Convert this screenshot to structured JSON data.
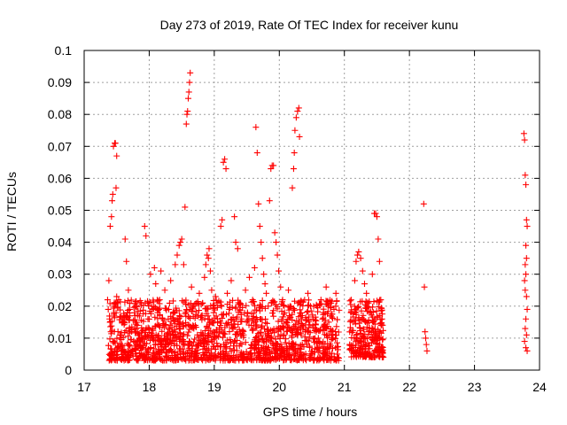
{
  "chart_data": {
    "type": "scatter",
    "title": "Day 273 of 2019, Rate Of TEC Index for receiver kunu",
    "xlabel": "GPS time / hours",
    "ylabel": "ROTI / TECUs",
    "xlim": [
      17,
      24
    ],
    "ylim": [
      0,
      0.1
    ],
    "x_ticks": [
      17,
      18,
      19,
      20,
      21,
      22,
      23,
      24
    ],
    "x_tick_labels": [
      "17",
      "18",
      "19",
      "20",
      "21",
      "22",
      "23",
      "24"
    ],
    "y_ticks": [
      0,
      0.01,
      0.02,
      0.03,
      0.04,
      0.05,
      0.06,
      0.07,
      0.08,
      0.09,
      0.1
    ],
    "y_tick_labels": [
      "0",
      "0.01",
      "0.02",
      "0.03",
      "0.04",
      "0.05",
      "0.06",
      "0.07",
      "0.08",
      "0.09",
      "0.1"
    ],
    "grid": true,
    "marker": "+",
    "color": "#ff0000",
    "series": [
      {
        "points": [
          [
            17.38,
            0.028
          ],
          [
            17.4,
            0.045
          ],
          [
            17.42,
            0.048
          ],
          [
            17.43,
            0.053
          ],
          [
            17.44,
            0.055
          ],
          [
            17.45,
            0.07
          ],
          [
            17.47,
            0.071
          ],
          [
            17.48,
            0.071
          ],
          [
            17.49,
            0.057
          ],
          [
            17.5,
            0.067
          ],
          [
            17.36,
            0.022
          ],
          [
            17.37,
            0.019
          ],
          [
            17.39,
            0.016
          ],
          [
            17.41,
            0.012
          ],
          [
            17.44,
            0.009
          ],
          [
            17.46,
            0.018
          ],
          [
            17.5,
            0.023
          ],
          [
            17.53,
            0.022
          ],
          [
            17.55,
            0.011
          ],
          [
            17.58,
            0.008
          ],
          [
            17.6,
            0.015
          ],
          [
            17.63,
            0.041
          ],
          [
            17.65,
            0.034
          ],
          [
            17.68,
            0.025
          ],
          [
            17.7,
            0.019
          ],
          [
            17.73,
            0.012
          ],
          [
            17.76,
            0.009
          ],
          [
            17.78,
            0.017
          ],
          [
            17.82,
            0.014
          ],
          [
            17.85,
            0.01
          ],
          [
            17.88,
            0.021
          ],
          [
            17.9,
            0.007
          ],
          [
            17.93,
            0.045
          ],
          [
            17.95,
            0.042
          ],
          [
            17.98,
            0.016
          ],
          [
            18.02,
            0.03
          ],
          [
            18.05,
            0.013
          ],
          [
            18.08,
            0.032
          ],
          [
            18.1,
            0.027
          ],
          [
            18.13,
            0.018
          ],
          [
            18.16,
            0.022
          ],
          [
            18.18,
            0.031
          ],
          [
            18.21,
            0.014
          ],
          [
            18.24,
            0.025
          ],
          [
            18.27,
            0.01
          ],
          [
            18.3,
            0.019
          ],
          [
            18.33,
            0.028
          ],
          [
            18.36,
            0.012
          ],
          [
            18.4,
            0.033
          ],
          [
            18.43,
            0.036
          ],
          [
            18.46,
            0.039
          ],
          [
            18.48,
            0.04
          ],
          [
            18.5,
            0.041
          ],
          [
            18.53,
            0.033
          ],
          [
            18.55,
            0.051
          ],
          [
            18.57,
            0.077
          ],
          [
            18.58,
            0.08
          ],
          [
            18.59,
            0.081
          ],
          [
            18.6,
            0.085
          ],
          [
            18.61,
            0.087
          ],
          [
            18.62,
            0.09
          ],
          [
            18.63,
            0.093
          ],
          [
            18.65,
            0.026
          ],
          [
            18.68,
            0.02
          ],
          [
            18.71,
            0.014
          ],
          [
            18.74,
            0.011
          ],
          [
            18.77,
            0.024
          ],
          [
            18.8,
            0.017
          ],
          [
            18.82,
            0.021
          ],
          [
            18.85,
            0.029
          ],
          [
            18.87,
            0.033
          ],
          [
            18.89,
            0.036
          ],
          [
            18.91,
            0.035
          ],
          [
            18.92,
            0.038
          ],
          [
            18.94,
            0.031
          ],
          [
            18.96,
            0.025
          ],
          [
            18.99,
            0.018
          ],
          [
            19.02,
            0.023
          ],
          [
            19.05,
            0.015
          ],
          [
            19.08,
            0.012
          ],
          [
            19.1,
            0.045
          ],
          [
            19.12,
            0.047
          ],
          [
            19.14,
            0.065
          ],
          [
            19.16,
            0.066
          ],
          [
            19.18,
            0.063
          ],
          [
            19.2,
            0.024
          ],
          [
            19.23,
            0.019
          ],
          [
            19.26,
            0.028
          ],
          [
            19.29,
            0.013
          ],
          [
            19.31,
            0.048
          ],
          [
            19.33,
            0.04
          ],
          [
            19.36,
            0.038
          ],
          [
            19.39,
            0.021
          ],
          [
            19.42,
            0.016
          ],
          [
            19.45,
            0.011
          ],
          [
            19.48,
            0.025
          ],
          [
            19.51,
            0.018
          ],
          [
            19.54,
            0.029
          ],
          [
            19.57,
            0.014
          ],
          [
            19.59,
            0.022
          ],
          [
            19.62,
            0.032
          ],
          [
            19.64,
            0.076
          ],
          [
            19.66,
            0.068
          ],
          [
            19.68,
            0.052
          ],
          [
            19.7,
            0.045
          ],
          [
            19.72,
            0.04
          ],
          [
            19.74,
            0.035
          ],
          [
            19.76,
            0.03
          ],
          [
            19.78,
            0.027
          ],
          [
            19.8,
            0.024
          ],
          [
            19.83,
            0.02
          ],
          [
            19.85,
            0.053
          ],
          [
            19.87,
            0.063
          ],
          [
            19.89,
            0.064
          ],
          [
            19.91,
            0.064
          ],
          [
            19.93,
            0.043
          ],
          [
            19.95,
            0.04
          ],
          [
            19.97,
            0.036
          ],
          [
            19.99,
            0.031
          ],
          [
            20.02,
            0.026
          ],
          [
            20.05,
            0.022
          ],
          [
            20.08,
            0.018
          ],
          [
            20.11,
            0.015
          ],
          [
            20.14,
            0.025
          ],
          [
            20.17,
            0.02
          ],
          [
            20.2,
            0.057
          ],
          [
            20.22,
            0.063
          ],
          [
            20.23,
            0.068
          ],
          [
            20.24,
            0.075
          ],
          [
            20.26,
            0.079
          ],
          [
            20.28,
            0.081
          ],
          [
            20.3,
            0.082
          ],
          [
            20.31,
            0.073
          ],
          [
            20.33,
            0.017
          ],
          [
            20.36,
            0.014
          ],
          [
            20.4,
            0.012
          ],
          [
            20.44,
            0.024
          ],
          [
            20.48,
            0.02
          ],
          [
            20.52,
            0.016
          ],
          [
            20.56,
            0.013
          ],
          [
            20.6,
            0.01
          ],
          [
            20.64,
            0.022
          ],
          [
            20.68,
            0.018
          ],
          [
            20.72,
            0.026
          ],
          [
            20.76,
            0.015
          ],
          [
            20.8,
            0.012
          ],
          [
            20.84,
            0.019
          ],
          [
            20.87,
            0.024
          ],
          [
            20.89,
            0.005
          ],
          [
            20.91,
            0.003
          ],
          [
            21.1,
            0.018
          ],
          [
            21.13,
            0.015
          ],
          [
            21.16,
            0.028
          ],
          [
            21.18,
            0.034
          ],
          [
            21.2,
            0.036
          ],
          [
            21.22,
            0.037
          ],
          [
            21.25,
            0.035
          ],
          [
            21.28,
            0.031
          ],
          [
            21.31,
            0.027
          ],
          [
            21.34,
            0.024
          ],
          [
            21.37,
            0.021
          ],
          [
            21.4,
            0.018
          ],
          [
            21.43,
            0.03
          ],
          [
            21.46,
            0.049
          ],
          [
            21.48,
            0.049
          ],
          [
            21.5,
            0.048
          ],
          [
            21.52,
            0.041
          ],
          [
            21.54,
            0.034
          ],
          [
            21.56,
            0.022
          ],
          [
            21.58,
            0.016
          ],
          [
            22.22,
            0.052
          ],
          [
            22.23,
            0.026
          ],
          [
            22.24,
            0.012
          ],
          [
            22.25,
            0.01
          ],
          [
            22.26,
            0.008
          ],
          [
            22.27,
            0.006
          ],
          [
            23.76,
            0.074
          ],
          [
            23.77,
            0.072
          ],
          [
            23.78,
            0.061
          ],
          [
            23.79,
            0.058
          ],
          [
            23.8,
            0.047
          ],
          [
            23.81,
            0.045
          ],
          [
            23.79,
            0.039
          ],
          [
            23.8,
            0.035
          ],
          [
            23.78,
            0.033
          ],
          [
            23.79,
            0.03
          ],
          [
            23.77,
            0.028
          ],
          [
            23.78,
            0.025
          ],
          [
            23.8,
            0.023
          ],
          [
            23.81,
            0.019
          ],
          [
            23.79,
            0.016
          ],
          [
            23.78,
            0.013
          ],
          [
            23.8,
            0.011
          ],
          [
            23.77,
            0.009
          ],
          [
            23.79,
            0.007
          ],
          [
            23.81,
            0.006
          ]
        ]
      }
    ],
    "dense_regions": [
      {
        "x": [
          17.36,
          20.92
        ],
        "y": [
          0.003,
          0.022
        ],
        "count": 1500
      },
      {
        "x": [
          21.08,
          21.6
        ],
        "y": [
          0.004,
          0.022
        ],
        "count": 260
      }
    ]
  }
}
